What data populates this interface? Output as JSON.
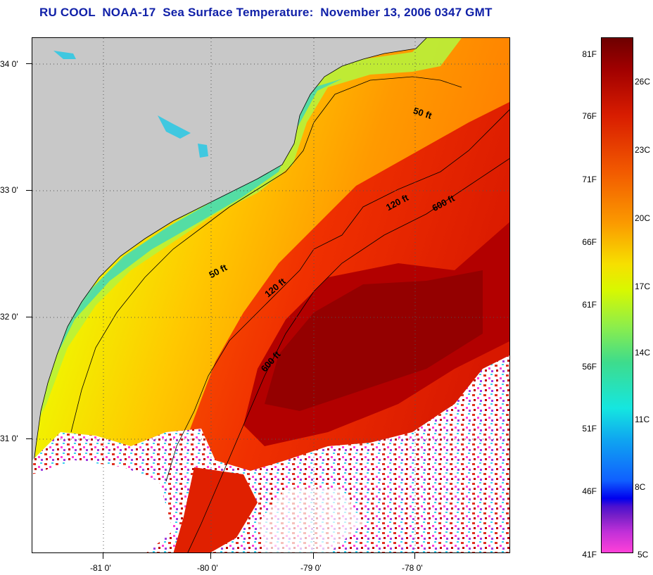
{
  "title": "RU COOL  NOAA-17  Sea Surface Temperature:  November 13, 2006 0347 GMT",
  "map": {
    "lat_labels": [
      "34 0'",
      "33 0'",
      "32 0'",
      "31 0'"
    ],
    "lon_labels": [
      "-81 0'",
      "-80 0'",
      "-79 0'",
      "-78 0'"
    ],
    "isobath_labels": [
      "50 ft",
      "120 ft",
      "600 ft",
      "50 ft",
      "120 ft",
      "600 ft"
    ]
  },
  "colorbar": {
    "fahrenheit": [
      "81F",
      "76F",
      "71F",
      "66F",
      "61F",
      "56F",
      "51F",
      "46F",
      "41F"
    ],
    "celsius": [
      "26C",
      "23C",
      "20C",
      "17C",
      "14C",
      "11C",
      "8C",
      "5C"
    ]
  },
  "colors": {
    "land": "#c8c8c8",
    "cloud": "#ffffff",
    "title": "#1020a8"
  }
}
